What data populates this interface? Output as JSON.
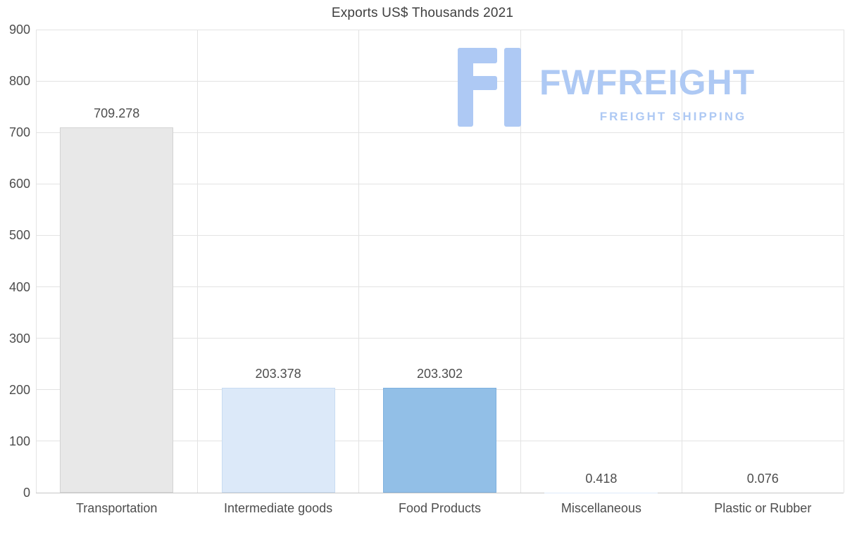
{
  "watermark": {
    "brand": "FWFREIGHT",
    "tagline": "FREIGHT SHIPPING",
    "color": "#aec9f4"
  },
  "chart_data": {
    "type": "bar",
    "title": "Exports US$ Thousands 2021",
    "categories": [
      "Transportation",
      "Intermediate goods",
      "Food Products",
      "Miscellaneous",
      "Plastic or Rubber"
    ],
    "values": [
      709.278,
      203.378,
      203.302,
      0.418,
      0.076
    ],
    "value_labels": [
      "709.278",
      "203.378",
      "203.302",
      "0.418",
      "0.076"
    ],
    "bar_colors": [
      "#e8e8e8",
      "#dce9f9",
      "#92bfe7",
      "#dce9f9",
      "#dce9f9"
    ],
    "bar_border_colors": [
      "#d3d3d3",
      "#c8dcf2",
      "#7fb1df",
      "#c8dcf2",
      "#c8dcf2"
    ],
    "xlabel": "",
    "ylabel": "",
    "ylim": [
      0,
      900
    ],
    "yticks": [
      0,
      100,
      200,
      300,
      400,
      500,
      600,
      700,
      800,
      900
    ],
    "grid": true,
    "legend": false,
    "colors": {
      "grid": "#e3e3e3",
      "axis": "#c7c7c7",
      "text": "#4d4d4d",
      "title": "#3f3f3f"
    }
  }
}
